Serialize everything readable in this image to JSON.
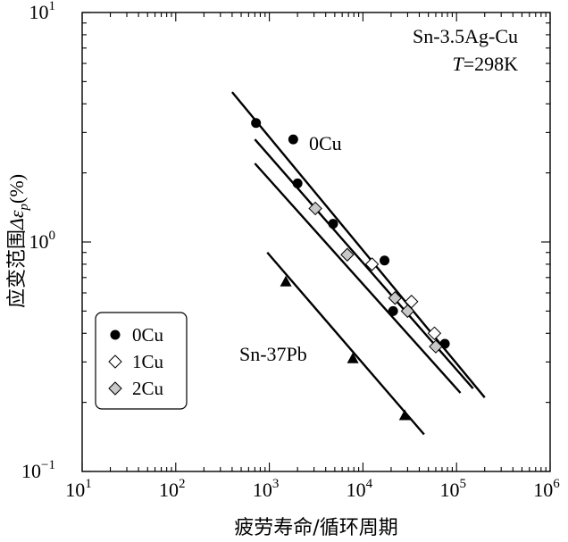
{
  "chart_data": {
    "type": "scatter",
    "x_scale": "log",
    "y_scale": "log",
    "xlim": [
      10,
      1000000
    ],
    "ylim": [
      0.1,
      10
    ],
    "xlabel": "疲劳寿命/循环周期",
    "ylabel_prefix": "应变范围",
    "ylabel_symbol": "Δε",
    "ylabel_sub": "p",
    "ylabel_unit": "(%)",
    "x_ticks": [
      {
        "base": "10",
        "exp": "1",
        "value": 10
      },
      {
        "base": "10",
        "exp": "2",
        "value": 100
      },
      {
        "base": "10",
        "exp": "3",
        "value": 1000
      },
      {
        "base": "10",
        "exp": "4",
        "value": 10000
      },
      {
        "base": "10",
        "exp": "5",
        "value": 100000
      },
      {
        "base": "10",
        "exp": "6",
        "value": 1000000
      }
    ],
    "y_ticks": [
      {
        "base": "10",
        "exp": "−1",
        "value": 0.1
      },
      {
        "base": "10",
        "exp": "0",
        "value": 1
      },
      {
        "base": "10",
        "exp": "1",
        "value": 10
      }
    ],
    "annotations": {
      "alloy": "Sn-3.5Ag-Cu",
      "temp_symbol": "T",
      "temp_value": "=298K",
      "line_label_0cu": "0Cu",
      "line_label_snpb": "Sn-37Pb"
    },
    "legend": {
      "placement": "lower-left",
      "entries": [
        "0Cu",
        "1Cu",
        "2Cu"
      ]
    },
    "series": [
      {
        "name": "0Cu",
        "marker": "circle",
        "fill": "#000000",
        "points": [
          [
            720,
            3.3
          ],
          [
            1800,
            2.8
          ],
          [
            2000,
            1.8
          ],
          [
            4800,
            1.2
          ],
          [
            17000,
            0.83
          ],
          [
            21000,
            0.5
          ],
          [
            75000,
            0.36
          ]
        ]
      },
      {
        "name": "1Cu",
        "marker": "diamond",
        "fill": "#ffffff",
        "points": [
          [
            12500,
            0.8
          ],
          [
            33000,
            0.55
          ],
          [
            58000,
            0.4
          ]
        ]
      },
      {
        "name": "2Cu",
        "marker": "diamond",
        "fill": "#c8c8c8",
        "points": [
          [
            3100,
            1.4
          ],
          [
            6800,
            0.88
          ],
          [
            22000,
            0.57
          ],
          [
            30000,
            0.5
          ],
          [
            60000,
            0.35
          ]
        ]
      },
      {
        "name": "Sn-37Pb",
        "marker": "triangle",
        "fill": "#000000",
        "points": [
          [
            1500,
            0.67
          ],
          [
            7800,
            0.31
          ],
          [
            28000,
            0.175
          ]
        ]
      }
    ],
    "fit_lines": [
      {
        "x": [
          400,
          200000
        ],
        "y": [
          4.5,
          0.21
        ]
      },
      {
        "x": [
          700,
          150000
        ],
        "y": [
          2.8,
          0.23
        ]
      },
      {
        "x": [
          700,
          110000
        ],
        "y": [
          2.2,
          0.22
        ]
      },
      {
        "x": [
          950,
          45000
        ],
        "y": [
          0.9,
          0.145
        ]
      }
    ]
  }
}
